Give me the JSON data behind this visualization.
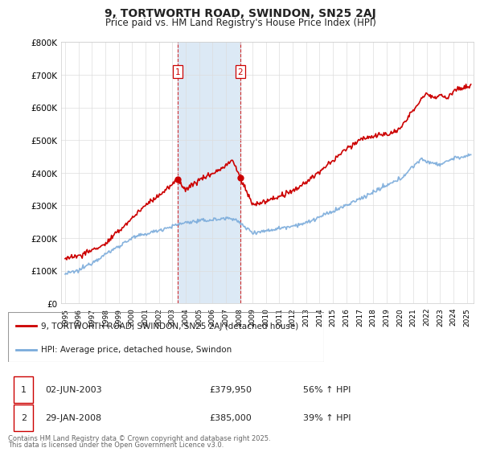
{
  "title": "9, TORTWORTH ROAD, SWINDON, SN25 2AJ",
  "subtitle": "Price paid vs. HM Land Registry's House Price Index (HPI)",
  "property_line_color": "#cc0000",
  "hpi_line_color": "#7aabdb",
  "background_color": "#ffffff",
  "plot_background_color": "#ffffff",
  "grid_color": "#dddddd",
  "highlight_color": "#dce9f5",
  "purchase1_date_num": 2003.42,
  "purchase2_date_num": 2008.08,
  "purchase1_price": 379950,
  "purchase2_price": 385000,
  "ylim": [
    0,
    800000
  ],
  "xlim": [
    1994.7,
    2025.5
  ],
  "legend_label_property": "9, TORTWORTH ROAD, SWINDON, SN25 2AJ (detached house)",
  "legend_label_hpi": "HPI: Average price, detached house, Swindon",
  "footer": "Contains HM Land Registry data © Crown copyright and database right 2025.\nThis data is licensed under the Open Government Licence v3.0.",
  "ytick_labels": [
    "£0",
    "£100K",
    "£200K",
    "£300K",
    "£400K",
    "£500K",
    "£600K",
    "£700K",
    "£800K"
  ],
  "ytick_values": [
    0,
    100000,
    200000,
    300000,
    400000,
    500000,
    600000,
    700000,
    800000
  ],
  "xtick_values": [
    1995,
    1996,
    1997,
    1998,
    1999,
    2000,
    2001,
    2002,
    2003,
    2004,
    2005,
    2006,
    2007,
    2008,
    2009,
    2010,
    2011,
    2012,
    2013,
    2014,
    2015,
    2016,
    2017,
    2018,
    2019,
    2020,
    2021,
    2022,
    2023,
    2024,
    2025
  ]
}
